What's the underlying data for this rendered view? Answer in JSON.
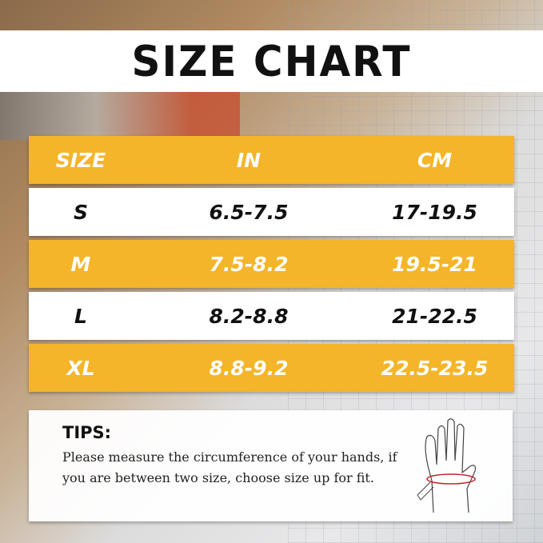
{
  "title": "SIZE CHART",
  "table": {
    "headers": [
      "SIZE",
      "IN",
      "CM"
    ],
    "rows": [
      [
        "S",
        "6.5-7.5",
        "17-19.5"
      ],
      [
        "M",
        "7.5-8.2",
        "19.5-21"
      ],
      [
        "L",
        "8.2-8.8",
        "21-22.5"
      ],
      [
        "XL",
        "8.8-9.2",
        "22.5-23.5"
      ]
    ]
  },
  "colors": {
    "accent": "#f4b52a",
    "row_alt": "#ffffff"
  },
  "tips": {
    "heading": "TIPS:",
    "text": "Please measure the circumference of your hands, if you are between two size, choose size up for fit.",
    "icon": "hand-measure-icon"
  }
}
